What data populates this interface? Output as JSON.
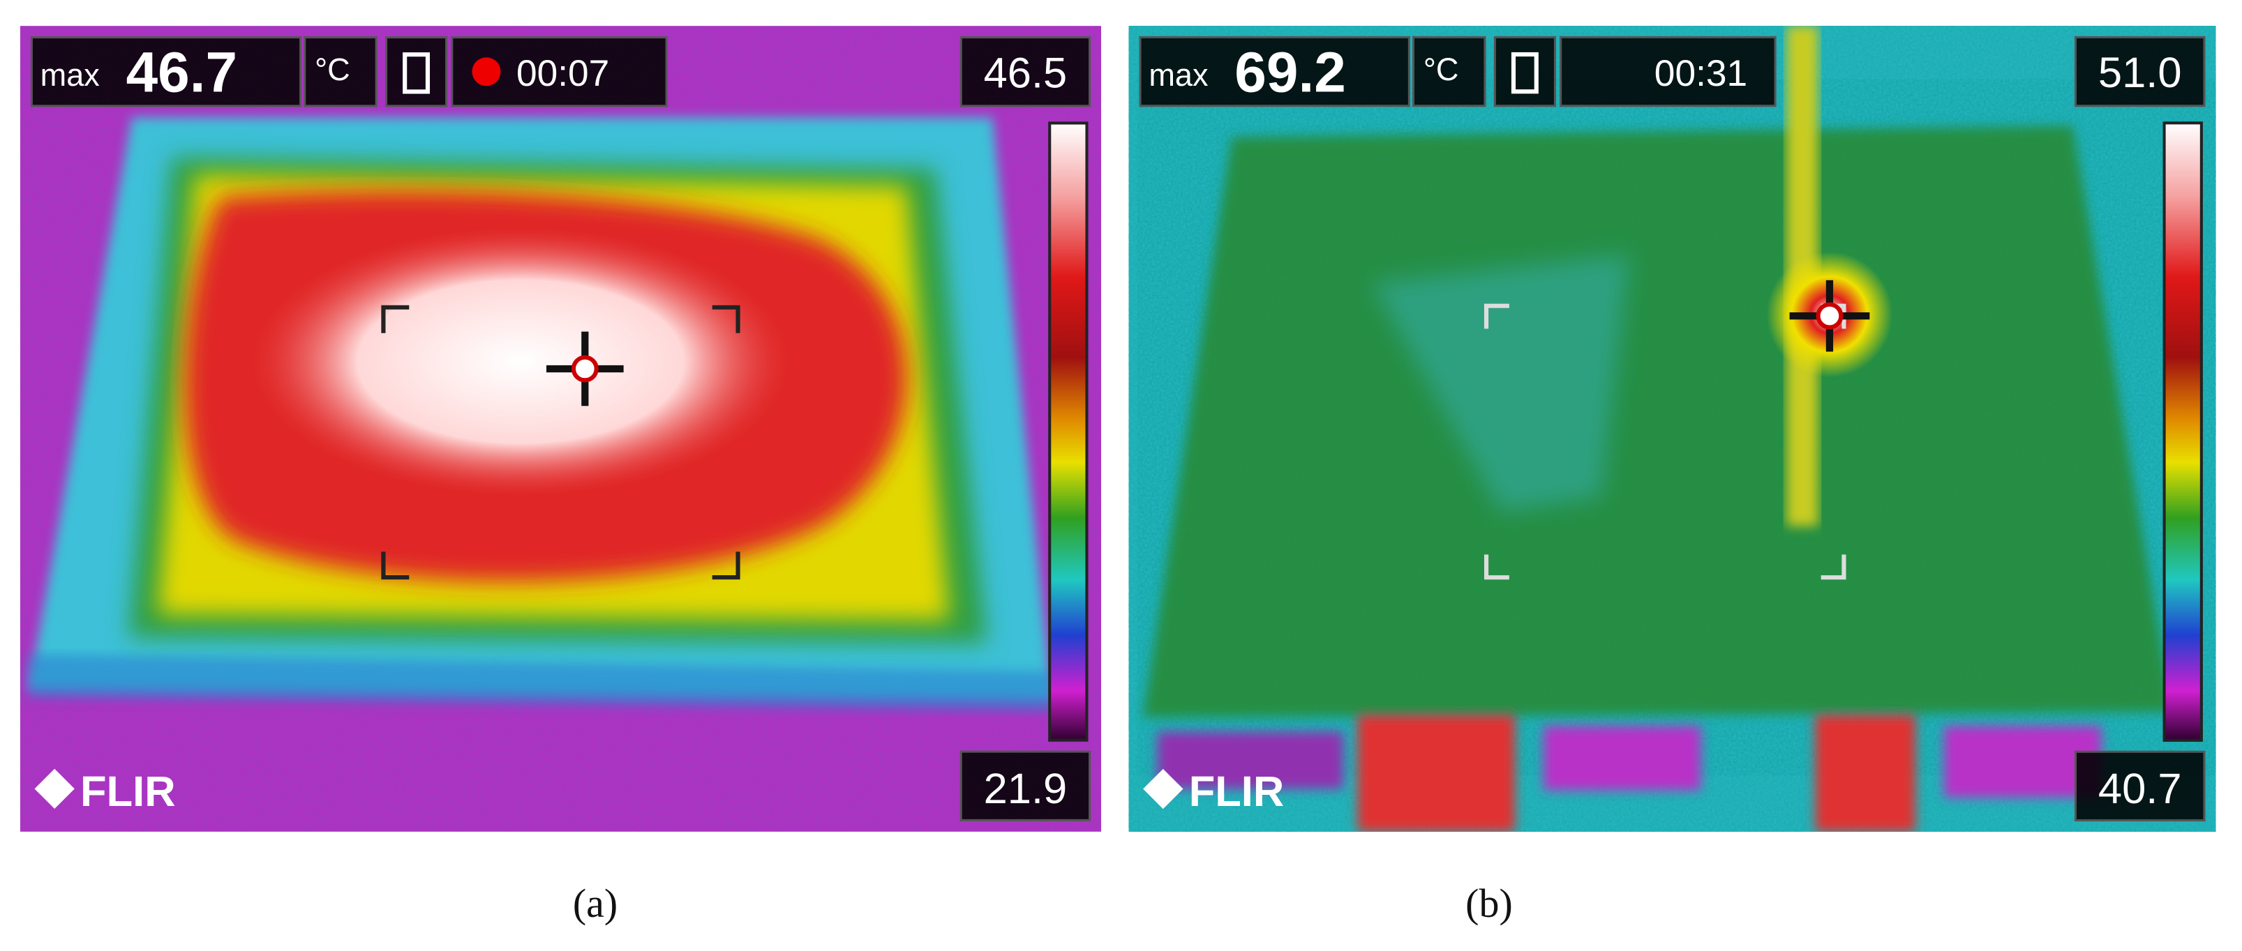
{
  "panels": [
    {
      "label": "(a)",
      "max_label": "max",
      "max_value": "46.7",
      "unit": "°C",
      "timer": "00:07",
      "scale_max": "46.5",
      "scale_min": "21.9",
      "logo": "FLIR"
    },
    {
      "label": "(b)",
      "max_label": "max",
      "max_value": "69.2",
      "unit": "°C",
      "timer": "00:31",
      "scale_max": "51.0",
      "scale_min": "40.7",
      "logo": "FLIR"
    }
  ]
}
